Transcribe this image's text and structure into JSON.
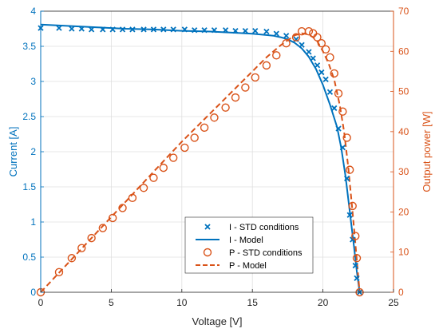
{
  "chart_data": {
    "type": "line",
    "xlabel": "Voltage [V]",
    "ylabel_left": "Current [A]",
    "ylabel_right": "Output power [W]",
    "xlim": [
      0,
      25
    ],
    "ylim_left": [
      0,
      4
    ],
    "ylim_right": [
      0,
      70
    ],
    "x_ticks": [
      "0",
      "5",
      "10",
      "15",
      "20",
      "25"
    ],
    "y_left_ticks": [
      "0",
      "0.5",
      "1",
      "1.5",
      "2",
      "2.5",
      "3",
      "3.5",
      "4"
    ],
    "y_right_ticks": [
      "0",
      "10",
      "20",
      "30",
      "40",
      "50",
      "60",
      "70"
    ],
    "grid": true,
    "legend_position": "bottom-center",
    "colors": {
      "current": "#0072BD",
      "power": "#D95319"
    },
    "series": [
      {
        "name": "I - STD conditions",
        "axis": "left",
        "style": "x-markers",
        "x": [
          0,
          1.3,
          2.2,
          2.9,
          3.6,
          4.4,
          5.1,
          5.8,
          6.5,
          7.3,
          8.0,
          8.7,
          9.4,
          10.2,
          10.9,
          11.6,
          12.3,
          13.1,
          13.8,
          14.5,
          15.2,
          16.0,
          16.7,
          17.4,
          18.1,
          18.5,
          19.0,
          19.3,
          19.6,
          19.9,
          20.2,
          20.5,
          20.8,
          21.1,
          21.4,
          21.7,
          21.9,
          22.1,
          22.3,
          22.4,
          22.6
        ],
        "y": [
          3.76,
          3.76,
          3.75,
          3.75,
          3.74,
          3.74,
          3.74,
          3.74,
          3.74,
          3.74,
          3.74,
          3.74,
          3.74,
          3.74,
          3.73,
          3.73,
          3.73,
          3.73,
          3.72,
          3.72,
          3.72,
          3.71,
          3.68,
          3.65,
          3.6,
          3.52,
          3.42,
          3.33,
          3.23,
          3.13,
          3.03,
          2.85,
          2.62,
          2.33,
          2.06,
          1.62,
          1.1,
          0.75,
          0.38,
          0.2,
          0.0
        ]
      },
      {
        "name": "I - Model",
        "axis": "left",
        "style": "solid-line",
        "x": [
          0,
          2,
          4,
          6,
          8,
          10,
          12,
          14,
          15,
          16,
          16.5,
          17,
          17.5,
          18,
          18.5,
          19,
          19.5,
          20,
          20.5,
          21,
          21.3,
          21.6,
          21.9,
          22.2,
          22.4,
          22.6
        ],
        "y": [
          3.81,
          3.79,
          3.77,
          3.75,
          3.74,
          3.72,
          3.71,
          3.69,
          3.68,
          3.66,
          3.65,
          3.63,
          3.6,
          3.55,
          3.47,
          3.35,
          3.18,
          2.95,
          2.67,
          2.35,
          2.05,
          1.65,
          1.15,
          0.65,
          0.3,
          0.0
        ]
      },
      {
        "name": "P - STD conditions",
        "axis": "right",
        "style": "o-markers",
        "x": [
          0,
          1.3,
          2.2,
          2.9,
          3.6,
          4.4,
          5.1,
          5.8,
          6.5,
          7.3,
          8.0,
          8.7,
          9.4,
          10.2,
          10.9,
          11.6,
          12.3,
          13.1,
          13.8,
          14.5,
          15.2,
          16.0,
          16.7,
          17.4,
          18.1,
          18.5,
          19.0,
          19.3,
          19.6,
          19.9,
          20.2,
          20.5,
          20.8,
          21.1,
          21.4,
          21.7,
          21.9,
          22.1,
          22.3,
          22.4,
          22.6
        ],
        "y": [
          0,
          5,
          8.5,
          11,
          13.5,
          16,
          18.5,
          21,
          23.5,
          26,
          28.5,
          31,
          33.5,
          36,
          38.5,
          41,
          43.5,
          46,
          48.5,
          51,
          53.5,
          56.5,
          59,
          62,
          63.5,
          65,
          65,
          64.5,
          63.5,
          62,
          60.5,
          58.5,
          54.5,
          49.5,
          45,
          38.5,
          30.5,
          21.5,
          14,
          8.5,
          0
        ]
      },
      {
        "name": "P - Model",
        "axis": "right",
        "style": "dashed-line",
        "x": [
          0,
          2,
          4,
          6,
          8,
          10,
          12,
          14,
          16,
          17,
          18,
          18.5,
          19,
          19.3,
          19.6,
          20,
          20.4,
          20.8,
          21.2,
          21.5,
          21.8,
          22.1,
          22.3,
          22.5,
          22.6
        ],
        "y": [
          0,
          7.5,
          15,
          22.5,
          30,
          37.5,
          44.5,
          51.5,
          58.5,
          61.5,
          64,
          64.5,
          64.2,
          63.5,
          62.5,
          60,
          57,
          53,
          46.5,
          40,
          31,
          20,
          12,
          4,
          0
        ]
      }
    ]
  }
}
